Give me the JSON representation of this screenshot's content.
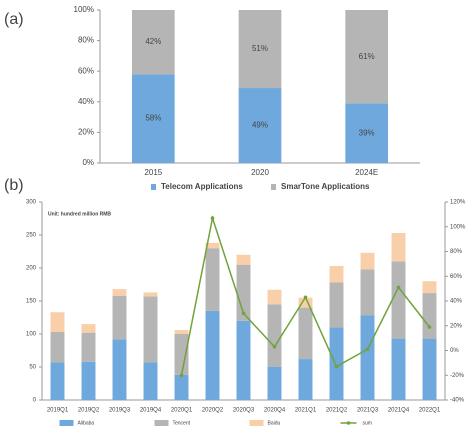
{
  "chart_data": [
    {
      "type": "bar",
      "stacked": true,
      "panel_label": "(a)",
      "categories": [
        "2015",
        "2020",
        "2024E"
      ],
      "series": [
        {
          "name": "Telecom Applications",
          "color": "#6fa8dc",
          "values": [
            58,
            49,
            39
          ],
          "value_labels": [
            "58%",
            "49%",
            "39%"
          ]
        },
        {
          "name": "SmarTone Applications",
          "color": "#b5b5b5",
          "values": [
            42,
            51,
            61
          ],
          "value_labels": [
            "42%",
            "51%",
            "61%"
          ]
        }
      ],
      "ylim": [
        0,
        100
      ],
      "yticks": [
        {
          "value": 0,
          "label": "0%"
        },
        {
          "value": 20,
          "label": "20%"
        },
        {
          "value": 40,
          "label": "40%"
        },
        {
          "value": 60,
          "label": "60%"
        },
        {
          "value": 80,
          "label": "80%"
        },
        {
          "value": 100,
          "label": "100%"
        }
      ],
      "grid": false
    },
    {
      "type": "bar",
      "stacked": true,
      "panel_label": "(b)",
      "subtitle": "Unit: hundred million RMB",
      "categories": [
        "2019Q1",
        "2019Q2",
        "2019Q3",
        "2019Q4",
        "2020Q1",
        "2020Q2",
        "2020Q3",
        "2020Q4",
        "2021Q1",
        "2021Q2",
        "2021Q3",
        "2021Q4",
        "2022Q1"
      ],
      "series": [
        {
          "name": "Alibaba",
          "color": "#6fa8dc",
          "values": [
            57,
            58,
            92,
            57,
            38,
            135,
            120,
            50,
            62,
            110,
            128,
            93,
            93
          ]
        },
        {
          "name": "Tencent",
          "color": "#b5b5b5",
          "values": [
            46,
            44,
            66,
            100,
            62,
            95,
            85,
            95,
            78,
            68,
            70,
            117,
            69
          ]
        },
        {
          "name": "Baidu",
          "color": "#f8cfa8",
          "values": [
            30,
            13,
            10,
            6,
            6,
            8,
            15,
            22,
            15,
            25,
            25,
            43,
            18
          ]
        },
        {
          "name": "sum",
          "color": "#70a33b",
          "type": "line",
          "axis": "y2",
          "values": [
            null,
            null,
            null,
            null,
            -20,
            107,
            30,
            3,
            43,
            -13,
            1,
            51,
            19
          ]
        }
      ],
      "ylim": [
        0,
        300
      ],
      "yticks": [
        0,
        50,
        100,
        150,
        200,
        250,
        300
      ],
      "y2lim": [
        -40,
        120
      ],
      "y2ticks": [
        {
          "value": -40,
          "label": "-40%"
        },
        {
          "value": -20,
          "label": "-20%"
        },
        {
          "value": 0,
          "label": "0%"
        },
        {
          "value": 20,
          "label": "20%"
        },
        {
          "value": 40,
          "label": "40%"
        },
        {
          "value": 60,
          "label": "60%"
        },
        {
          "value": 80,
          "label": "80%"
        },
        {
          "value": 100,
          "label": "100%"
        },
        {
          "value": 120,
          "label": "120%"
        }
      ],
      "grid": false
    }
  ]
}
